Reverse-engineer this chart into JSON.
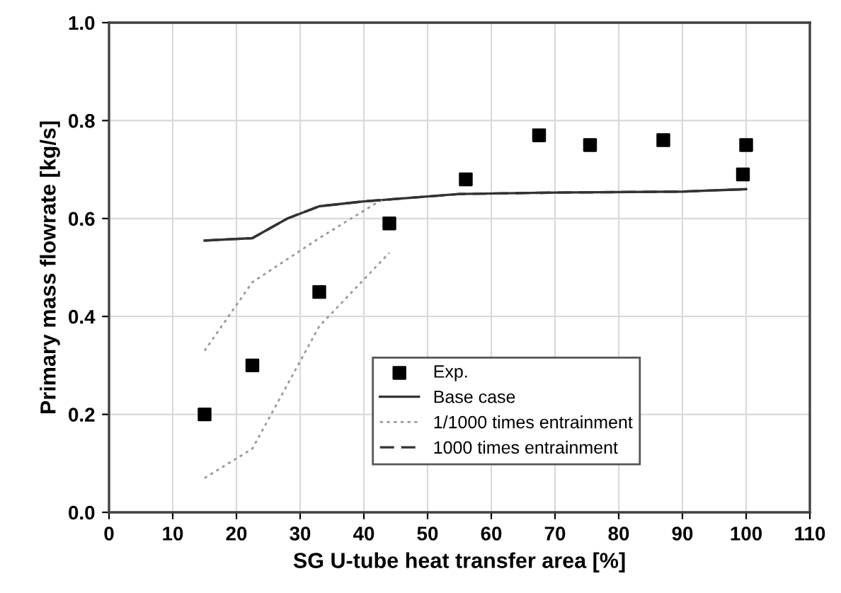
{
  "chart_data": {
    "type": "scatter",
    "xlabel": "SG U-tube heat transfer area [%]",
    "ylabel": "Primary mass flowrate [kg/s]",
    "xlim": [
      0,
      110
    ],
    "xticks": [
      0,
      10,
      20,
      30,
      40,
      50,
      60,
      70,
      80,
      90,
      100,
      110
    ],
    "ylim": [
      0,
      1
    ],
    "yticks": [
      {
        "value": 0,
        "label": "0.0"
      },
      {
        "value": 0.2,
        "label": "0.2"
      },
      {
        "value": 0.4,
        "label": "0.4"
      },
      {
        "value": 0.6,
        "label": "0.6"
      },
      {
        "value": 0.8,
        "label": "0.8"
      },
      {
        "value": 1,
        "label": "1.0"
      }
    ],
    "grid": true,
    "legend": "bottom right",
    "series": [
      {
        "name": "Exp.",
        "marker": "square",
        "color": "#000000",
        "x": [
          15,
          22.5,
          33,
          44,
          56,
          67.5,
          75.5,
          87,
          99.5,
          100
        ],
        "values": [
          0.2,
          0.3,
          0.45,
          0.59,
          0.68,
          0.77,
          0.75,
          0.76,
          0.69,
          0.75
        ]
      },
      {
        "name": "Base case",
        "type": "line",
        "line_style": "solid",
        "color": "#333333",
        "x": [
          15,
          22.5,
          28,
          33,
          40,
          50,
          55,
          70,
          90,
          100
        ],
        "values": [
          0.555,
          0.56,
          0.6,
          0.625,
          0.635,
          0.645,
          0.65,
          0.653,
          0.655,
          0.66
        ]
      },
      {
        "name": "1/1000 times entrainment",
        "type": "line",
        "line_style": "dotted",
        "color": "#999999",
        "x": [
          15,
          22.5,
          33,
          43
        ],
        "values": [
          0.33,
          0.47,
          0.56,
          0.64
        ]
      },
      {
        "type": "line",
        "line_style": "dotted",
        "color": "#999999",
        "x": [
          15,
          22.5,
          33,
          44
        ],
        "values": [
          0.07,
          0.13,
          0.38,
          0.53
        ]
      },
      {
        "name": "1000 times entrainment",
        "type": "line",
        "line_style": "dashed",
        "color": "#333333",
        "x": [
          15,
          22.5,
          28,
          33,
          40,
          50,
          55,
          70,
          90,
          100
        ],
        "values": [
          0.555,
          0.56,
          0.6,
          0.625,
          0.635,
          0.645,
          0.65,
          0.653,
          0.655,
          0.66
        ]
      }
    ]
  }
}
